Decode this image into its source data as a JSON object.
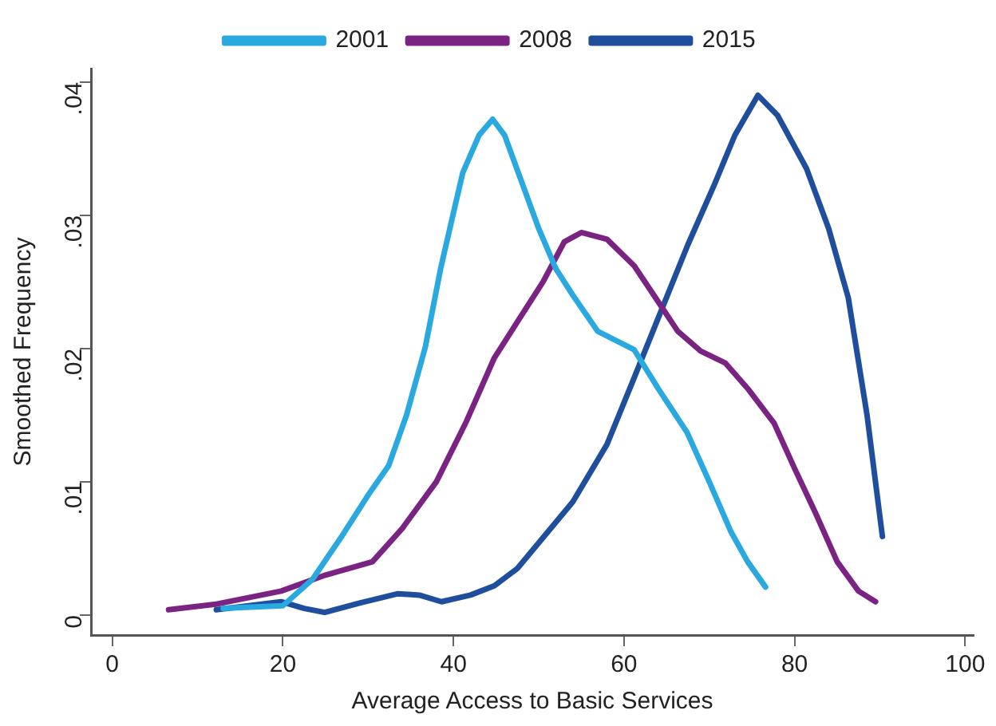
{
  "chart_data": {
    "type": "line",
    "xlabel": "Average Access to Basic Services",
    "ylabel": "Smoothed Frequency",
    "xlim": [
      -2.5,
      101
    ],
    "ylim": [
      -0.0015,
      0.041
    ],
    "xticks": [
      0,
      20,
      40,
      60,
      80,
      100
    ],
    "yticks": [
      {
        "value": 0,
        "label": "0"
      },
      {
        "value": 0.01,
        "label": ".01"
      },
      {
        "value": 0.02,
        "label": ".02"
      },
      {
        "value": 0.03,
        "label": ".03"
      },
      {
        "value": 0.04,
        "label": ".04"
      }
    ],
    "grid": false,
    "legend": "top",
    "marker": "none",
    "line_style": "solid",
    "series": [
      {
        "name": "2001",
        "color": "#29a9e0",
        "x": [
          13,
          20,
          23.5,
          27,
          30,
          32.4,
          34.5,
          36.7,
          38.5,
          39.9,
          41.1,
          43,
          44.6,
          46,
          48,
          50,
          52,
          54,
          56.9,
          61.2,
          64,
          67.4,
          70,
          72.5,
          74.5,
          76.6
        ],
        "values": [
          0.0005,
          0.0007,
          0.0027,
          0.006,
          0.009,
          0.0112,
          0.015,
          0.0201,
          0.026,
          0.0299,
          0.0332,
          0.036,
          0.0372,
          0.036,
          0.0325,
          0.029,
          0.026,
          0.024,
          0.0213,
          0.0199,
          0.017,
          0.0137,
          0.01,
          0.0063,
          0.004,
          0.0021
        ]
      },
      {
        "name": "2008",
        "color": "#7b2382",
        "x": [
          6.6,
          12,
          19.8,
          25,
          30.5,
          34,
          38,
          41.5,
          44.8,
          47.5,
          50.5,
          53,
          55,
          58,
          61.2,
          63.5,
          66.3,
          69,
          71.9,
          74.5,
          77.6,
          80,
          82.5,
          85,
          87.5,
          89.5
        ],
        "values": [
          0.0004,
          0.0008,
          0.0018,
          0.003,
          0.004,
          0.0065,
          0.01,
          0.0145,
          0.0193,
          0.022,
          0.025,
          0.028,
          0.0287,
          0.0282,
          0.0262,
          0.024,
          0.0213,
          0.0198,
          0.0189,
          0.017,
          0.0144,
          0.011,
          0.0076,
          0.004,
          0.0018,
          0.001
        ]
      },
      {
        "name": "2015",
        "color": "#1f4e9c",
        "x": [
          12.2,
          16,
          19.8,
          22.5,
          24.9,
          29,
          33.5,
          36,
          38.6,
          42,
          44.8,
          47.5,
          50.5,
          54,
          58,
          61,
          64.4,
          67.5,
          70.6,
          73,
          75.7,
          78,
          81.4,
          84,
          86.3,
          88.5,
          90.3
        ],
        "values": [
          0.0004,
          0.0007,
          0.001,
          0.0005,
          0.0002,
          0.0009,
          0.0016,
          0.0015,
          0.001,
          0.0015,
          0.0022,
          0.0035,
          0.0058,
          0.0085,
          0.0128,
          0.0175,
          0.0229,
          0.0278,
          0.0323,
          0.036,
          0.039,
          0.0375,
          0.0335,
          0.029,
          0.0238,
          0.015,
          0.0059
        ]
      }
    ]
  }
}
